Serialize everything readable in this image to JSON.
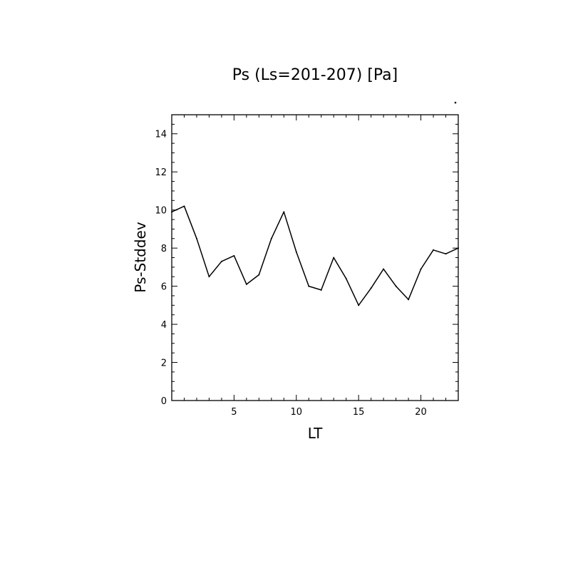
{
  "chart_data": {
    "type": "line",
    "title": "Ps (Ls=201-207) [Pa]",
    "xlabel": "LT",
    "ylabel": "Ps-Stddev",
    "xlim": [
      0,
      23
    ],
    "ylim": [
      0,
      15
    ],
    "xticks": [
      5,
      10,
      15,
      20
    ],
    "xtick_labels": [
      "5",
      "10",
      "15",
      "20"
    ],
    "x_minor_step": 1,
    "yticks": [
      0,
      2,
      4,
      6,
      8,
      10,
      12,
      14
    ],
    "ytick_labels": [
      "0",
      "2",
      "4",
      "6",
      "8",
      "10",
      "12",
      "14"
    ],
    "y_minor_step": 0.5,
    "grid": false,
    "series": [
      {
        "x": [
          0,
          1,
          2,
          3,
          4,
          5,
          6,
          7,
          8,
          9,
          10,
          11,
          12,
          13,
          14,
          15,
          16,
          17,
          18,
          19,
          20,
          21,
          22,
          23
        ],
        "values": [
          9.9,
          10.2,
          8.5,
          6.5,
          7.3,
          7.6,
          6.1,
          6.6,
          8.5,
          9.9,
          7.8,
          6.0,
          5.8,
          7.5,
          6.4,
          5.0,
          5.9,
          6.9,
          6.0,
          5.3,
          6.9,
          7.9,
          7.7,
          8.0
        ]
      }
    ],
    "color": "#000000"
  }
}
